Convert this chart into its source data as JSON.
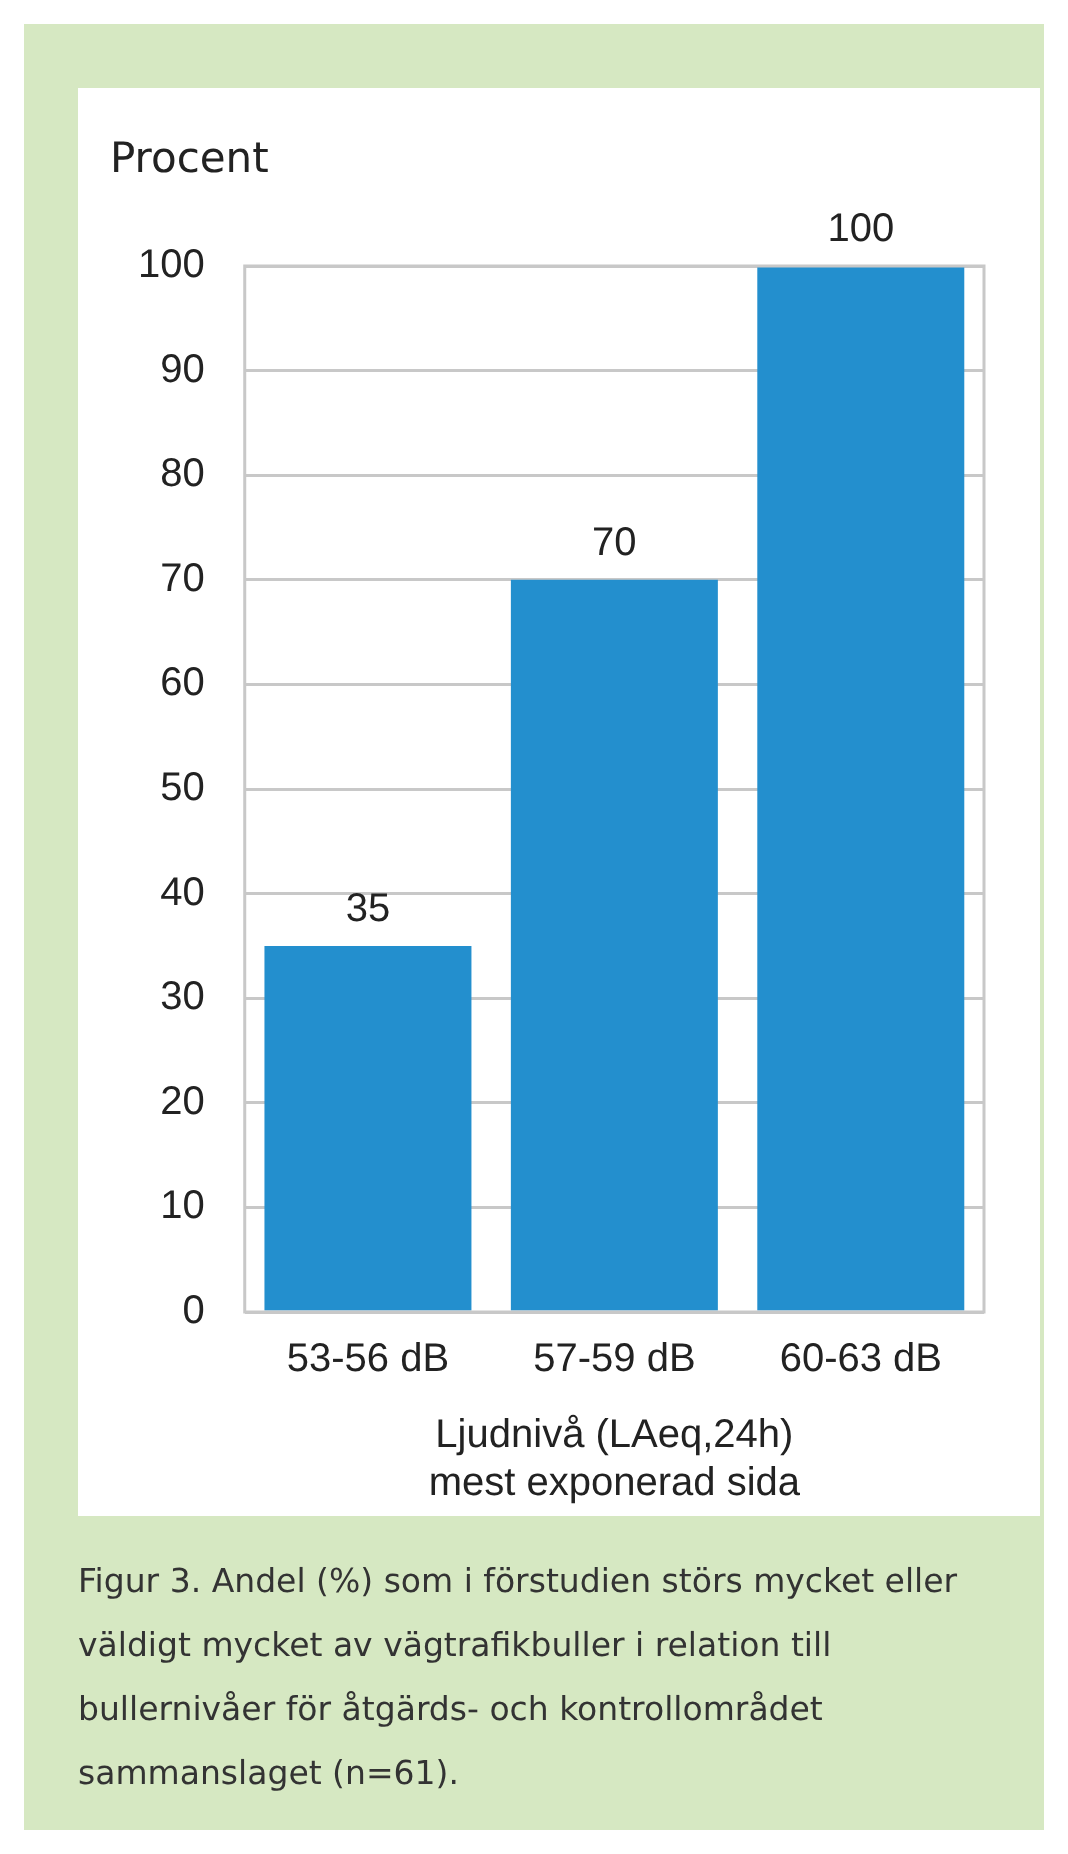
{
  "chart_data": {
    "type": "bar",
    "ylabel": "Procent",
    "xlabel": "Ljudnivå (LAeq,24h)\nmest exponerad sida",
    "categories": [
      "53-56 dB",
      "57-59 dB",
      "60-63 dB"
    ],
    "values": [
      35,
      70,
      100
    ],
    "color": "#238fce",
    "ylim": [
      0,
      100
    ],
    "yticks": [
      0,
      10,
      20,
      30,
      40,
      50,
      60,
      70,
      80,
      90,
      100
    ],
    "grid": "y",
    "data_labels": true,
    "legend": false,
    "annotations": [
      "Figur 3. Andel (%) som i förstudien störs mycket eller väldigt mycket av vägtrafikbuller i relation till bullernivåer för åtgärds- och kontrollområdet sammanslaget (n=61)."
    ]
  }
}
